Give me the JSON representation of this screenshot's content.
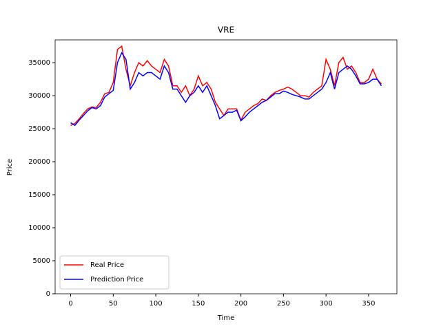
{
  "chart_data": {
    "type": "line",
    "title": "VRE",
    "xlabel": "Time",
    "ylabel": "Price",
    "x": [
      0,
      5,
      10,
      15,
      20,
      25,
      30,
      35,
      40,
      45,
      50,
      55,
      60,
      65,
      70,
      75,
      80,
      85,
      90,
      95,
      100,
      105,
      110,
      115,
      120,
      125,
      130,
      135,
      140,
      145,
      150,
      155,
      160,
      165,
      170,
      175,
      180,
      185,
      190,
      195,
      200,
      205,
      210,
      215,
      220,
      225,
      230,
      235,
      240,
      245,
      250,
      255,
      260,
      265,
      270,
      275,
      280,
      285,
      290,
      295,
      300,
      305,
      310,
      315,
      320,
      325,
      330,
      335,
      340,
      345,
      350,
      355,
      360,
      365
    ],
    "series": [
      {
        "name": "Real Price",
        "color": "#ff0000",
        "values": [
          25500,
          25800,
          26500,
          27300,
          28000,
          28300,
          28200,
          29000,
          30300,
          30500,
          32000,
          37000,
          37500,
          34000,
          31500,
          33500,
          35000,
          34500,
          35300,
          34500,
          34000,
          33500,
          35500,
          34500,
          31500,
          31500,
          30500,
          31500,
          30000,
          31000,
          33000,
          31500,
          32000,
          31000,
          29000,
          28000,
          27000,
          28000,
          28000,
          28000,
          26300,
          27500,
          28000,
          28500,
          28800,
          29500,
          29300,
          30000,
          30500,
          30800,
          31000,
          31300,
          31000,
          30500,
          30000,
          30000,
          29800,
          30500,
          31000,
          31500,
          35500,
          34000,
          31500,
          35000,
          35800,
          34000,
          34500,
          33500,
          32000,
          32000,
          32500,
          34000,
          32500,
          31800
        ]
      },
      {
        "name": "Prediction Price",
        "color": "#0000ff",
        "values": [
          25900,
          25500,
          26300,
          27000,
          27700,
          28200,
          28000,
          28500,
          29800,
          30300,
          30800,
          35000,
          36500,
          35500,
          31000,
          32000,
          33500,
          33000,
          33500,
          33500,
          33000,
          32500,
          34500,
          33500,
          31000,
          31000,
          30000,
          29000,
          30000,
          30500,
          31500,
          30500,
          31500,
          30000,
          28500,
          26500,
          27000,
          27500,
          27500,
          27800,
          26200,
          26800,
          27500,
          28000,
          28500,
          29000,
          29300,
          29800,
          30300,
          30300,
          30700,
          30500,
          30200,
          30000,
          29800,
          29500,
          29500,
          30000,
          30500,
          31000,
          32000,
          33500,
          31000,
          33500,
          34000,
          34500,
          34000,
          33000,
          31800,
          31800,
          32000,
          32500,
          32500,
          31500
        ]
      }
    ],
    "xlim": [
      -18.25,
      383.25
    ],
    "ylim": [
      0,
      38450
    ],
    "xticks": [
      0,
      50,
      100,
      150,
      200,
      250,
      300,
      350
    ],
    "yticks": [
      0,
      5000,
      10000,
      15000,
      20000,
      25000,
      30000,
      35000
    ],
    "legend": "lower left"
  }
}
